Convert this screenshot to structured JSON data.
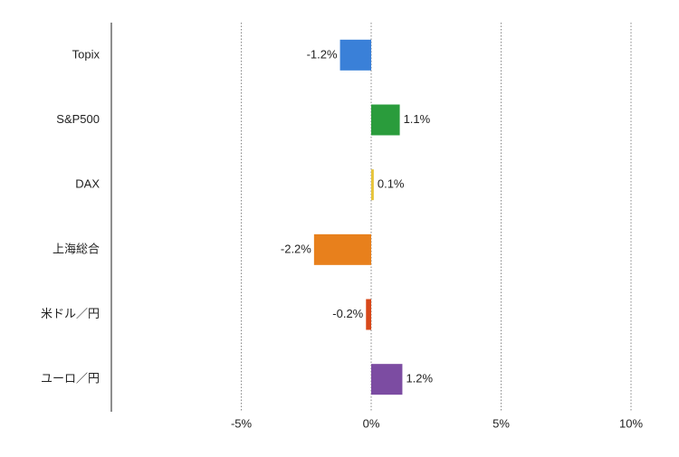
{
  "chart_data": {
    "type": "hbar",
    "categories": [
      "Topix",
      "S&P500",
      "DAX",
      "上海総合",
      "米ドル／円",
      "ユーロ／円"
    ],
    "values": [
      -1.2,
      1.1,
      0.1,
      -2.2,
      -0.2,
      1.2
    ],
    "value_labels": [
      "-1.2%",
      "1.1%",
      "0.1%",
      "-2.2%",
      "-0.2%",
      "1.2%"
    ],
    "colors": [
      "#3a80d8",
      "#2a9c3c",
      "#e6c43a",
      "#e8801c",
      "#d8481a",
      "#7c4ca2"
    ],
    "xlim": [
      -10,
      10
    ],
    "xticks": [
      {
        "value": -5,
        "label": "-5%"
      },
      {
        "value": 0,
        "label": "0%"
      },
      {
        "value": 5,
        "label": "5%"
      },
      {
        "value": 10,
        "label": "10%"
      }
    ],
    "grid": true
  }
}
